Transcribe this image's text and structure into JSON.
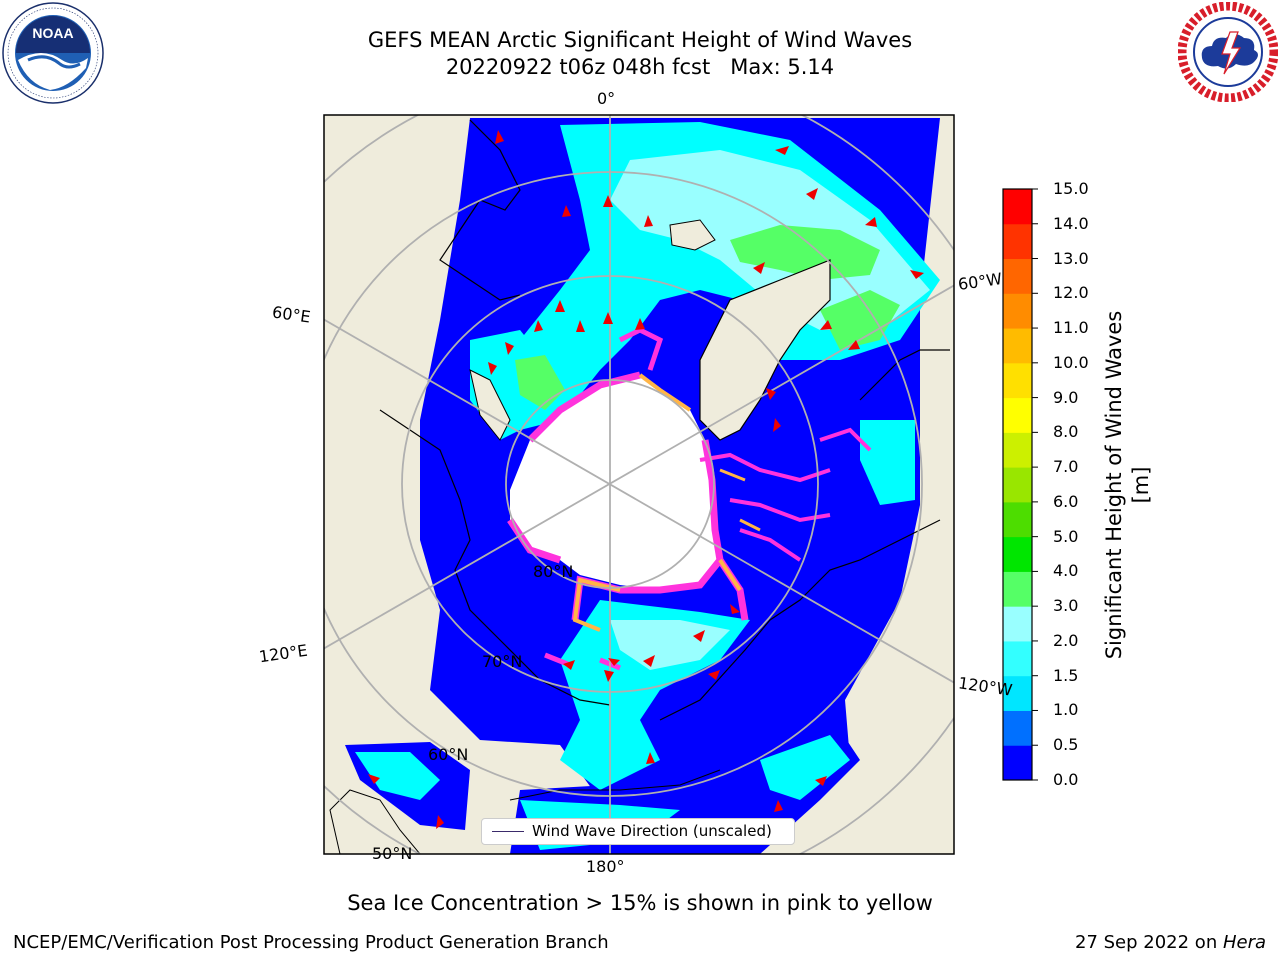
{
  "title": {
    "line1": "GEFS MEAN Arctic Significant Height of Wind Waves",
    "line2": "20220922 t06z 048h fcst   Max: 5.14"
  },
  "logos": {
    "left": "noaa-logo",
    "left_text": "NOAA",
    "right": "national-weather-service-logo"
  },
  "map": {
    "projection": "north-polar-stereographic",
    "meridian_labels": {
      "top": "0°",
      "bottom": "180°",
      "left_upper": "60°E",
      "left_lower": "120°E",
      "right_upper": "60°W",
      "right_lower": "120°W"
    },
    "parallel_labels": {
      "lat80": "80°N",
      "lat70": "70°N",
      "lat60": "60°N",
      "lat50": "50°N"
    },
    "colors": {
      "land": "#efecdc",
      "ocean_calm": "#0000ff",
      "ocean_low": "#00ffff",
      "ocean_mid": "#99ffff",
      "ocean_high": "#55ff66",
      "sea_ice_edge": "#ff33dd",
      "sea_ice_yellow": "#ffb547",
      "arrows": "#ee0000",
      "graticule": "#b0b0b0"
    },
    "legend": {
      "label": "Wind Wave Direction (unscaled)",
      "line_color": "#3a2a6a"
    }
  },
  "colorbar": {
    "label": "Significant Height of Wind Waves [m]",
    "ticks": [
      "0.0",
      "0.5",
      "1.0",
      "1.5",
      "2.0",
      "3.0",
      "4.0",
      "5.0",
      "6.0",
      "7.0",
      "8.0",
      "9.0",
      "10.0",
      "11.0",
      "12.0",
      "13.0",
      "14.0",
      "15.0"
    ],
    "colors": [
      "#0000ff",
      "#0070ff",
      "#00e6ff",
      "#33ffff",
      "#99ffff",
      "#55ff66",
      "#00e600",
      "#4ddd00",
      "#99e600",
      "#ccf000",
      "#ffff00",
      "#ffe000",
      "#ffbb00",
      "#ff8c00",
      "#ff6600",
      "#ff3300",
      "#ff0000"
    ]
  },
  "subtitle": "Sea Ice Concentration > 15% is shown in pink to yellow",
  "footer": {
    "left": "NCEP/EMC/Verification Post Processing Product Generation Branch",
    "date": "27 Sep 2022 on ",
    "host": "Hera"
  }
}
